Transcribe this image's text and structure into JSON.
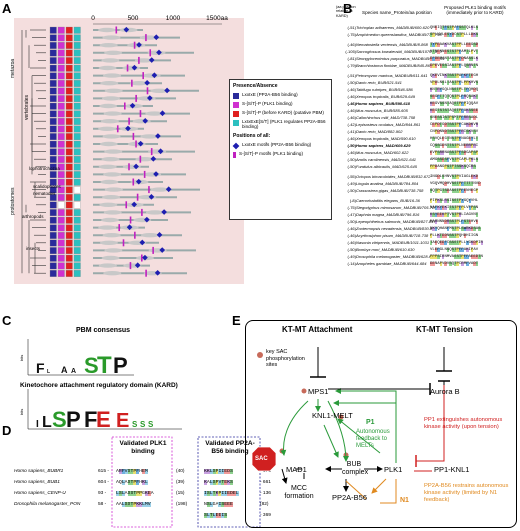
{
  "panels": {
    "a": "A",
    "b": "B",
    "c": "C",
    "d": "D",
    "e": "E"
  },
  "panelA": {
    "axis_ticks": [
      "0",
      "500",
      "1000",
      "1500aa"
    ],
    "clades": [
      "metazoa",
      "vertebrates",
      "lophotrochozoa",
      "protostomes",
      "scalidophores",
      "nematodes",
      "arthropods",
      "insects"
    ],
    "legend": {
      "title1": "Presence/Absence",
      "items1": [
        {
          "color": "#2a2a9a",
          "label": "LxxIxE (PP2A-B56 binding)"
        },
        {
          "color": "#d030d0",
          "label": "S-[S/T]-P (PLK1 binding)"
        },
        {
          "color": "#e02020",
          "label": "S-[S/T]-P (before KARD) (putative PBM)"
        },
        {
          "color": "#2cc0c0",
          "label": "LxIxExE[S/T] (PLK1 regulates PP2A-B56 binding)"
        }
      ],
      "title2": "Positions of all:",
      "items2": [
        {
          "color": "#1e1eb0",
          "label": "LxxIxE motifs (PP2A-B56 binding)"
        },
        {
          "color": "#c020c0",
          "label": "S-[S/T]-P motifs (PLK1 binding)"
        }
      ]
    }
  },
  "panelB": {
    "header_pos": "(aa position relative to KARD)",
    "header_species": "Species name_Protein/aa position",
    "header_motif": "Proposed PLK1 binding motifs (immediately prior to KARD)",
    "rows": [
      {
        "pos": "(-51)",
        "name": "Trichoplax adhaerens_MADBUB/600-620",
        "motif": "QNEIQTFSTPAFSSTQLKLS",
        "bold": false,
        "red": false
      },
      {
        "pos": "(-75)",
        "name": "Amphimedon queenslandica_MADBUB/736-756",
        "motif": "SPLNVLESYDCSTPLLLDKS",
        "bold": false,
        "red": false
      },
      {
        "pos": "(-46)",
        "name": "Nematostella vectensis_MADBUB/8-868",
        "motif": "TYPEAAKVASTPPLLEEGSD",
        "bold": false,
        "red": false
      },
      {
        "pos": "(-105)",
        "name": "Saccoglossus kowalevskii_MADBUB/1070-1090",
        "motif": "HTNENNESTSTPFAMTLPVT",
        "bold": false,
        "red": false
      },
      {
        "pos": "(-81)",
        "name": "Strongylocentrotus purpuratus_MADBUB/941-961",
        "motif": "DFDEMANTASTPFDNASSLK",
        "bold": false,
        "red": false
      },
      {
        "pos": "(-79)",
        "name": "Branchiostoma floridae_MADBUB/845-865",
        "motif": "DPEVESSIASTPFLQSRNTN",
        "bold": false,
        "red": false
      },
      {
        "pos": "(-51)",
        "name": "Petromyzon marinus_MADBUB/611-641",
        "motif": "QKEVINKTSSTPAFKFTEGH",
        "bold": false,
        "red": false
      },
      {
        "pos": "(-50)",
        "name": "Danio rerio_BUB/521-541",
        "motif": "VPDLNSLTASTPFLPPKHVS",
        "bold": false,
        "red": false
      },
      {
        "pos": "(-46)",
        "name": "Takifugu rubripes_BUB/546-586",
        "motif": "KNTRYGQLNSSTPLTFQHDQ",
        "bold": false,
        "red": false
      },
      {
        "pos": "(-46)",
        "name": "Xenopus tropicalis_BUB/629-649",
        "motif": "SEGFTTQTQSTPLFRQSAKT",
        "bold": false,
        "red": false
      },
      {
        "pos": "(-46)",
        "name": "Homo sapiens_BUB/598-618",
        "motif": "KEGVSSNTAQSTPFPIQQAV",
        "bold": true,
        "red": true
      },
      {
        "pos": "(-46)",
        "name": "Mus musculus_BUB/585-605",
        "motif": "KEGTSTSTAQSTPFAKSSEE",
        "bold": false,
        "red": false
      },
      {
        "pos": "(-46)",
        "name": "Callorhinchus milii_MAD/738-758",
        "motif": "SNESSISTPSMTPFRRSADL",
        "bold": false,
        "red": false
      },
      {
        "pos": "(-42)",
        "name": "Lepisosteus oculatus_MAD/844-861",
        "motif": "CEPDTGDTSSTPFCAKDKVR",
        "bold": false,
        "red": false
      },
      {
        "pos": "(-41)",
        "name": "Danio rerio_MAD/882-902",
        "motif": "CNPDNNDTSSTPFRISKVSV",
        "bold": false,
        "red": false
      },
      {
        "pos": "(-46)",
        "name": "Xenopus tropicalis_MAD/590-610",
        "motif": "HSVQLEGTNSTPFNAGEYLT",
        "bold": false,
        "red": false
      },
      {
        "pos": "(-50)",
        "name": "Homo sapiens_MAD/609-629",
        "motif": "CQSSGDNTTSTPLNERRPRI",
        "bold": true,
        "red": true
      },
      {
        "pos": "(-46)",
        "name": "Mus musculus_MAD/602-622",
        "motif": "EVPSRRNASSTPFSDGAPSP",
        "bold": false,
        "red": false
      },
      {
        "pos": "(-50)",
        "name": "Anolis carolinensis_MAD/621-641",
        "motif": "AMGSSDSFVSTPCAPLPKLS",
        "bold": false,
        "red": false
      },
      {
        "pos": "(-50)",
        "name": "Fundulus albicaulis_MAD/625-645",
        "motif": "PPDANGPSTPTSSKSQCRS",
        "bold": false,
        "red": false
      },
      {
        "pos": "(-55)",
        "name": "Octopus bimaculoides_MADBUB/832-672",
        "motif": "INGDLSHNVSTPVIAGLEKD",
        "bold": false,
        "red": false
      },
      {
        "pos": "(-49)",
        "name": "Lingula anatina_MADBUB/784-804",
        "motif": "VGQVMQDHVSSTPFTTTTNVD",
        "bold": false,
        "red": false
      },
      {
        "pos": "(-50)",
        "name": "Crassostrea gigas_MADBUB/738-758",
        "motif": "SQTPGTSDASSTPFENHEGP",
        "bold": false,
        "red": false
      },
      {
        "pos": "(-8)",
        "name": "Caenorhabditis elegans_BUB/16-36",
        "motif": "PIPKSLRSISSTPYGQYVHL",
        "bold": false,
        "red": false
      },
      {
        "pos": "(-75)",
        "name": "Stegodyphus mimosarum_MADBUB/705-725",
        "motif": "NAFKYEKITSTPFPLVFPSN",
        "bold": false,
        "red": false
      },
      {
        "pos": "(-47)",
        "name": "Daphnia magna_MADBUB/796-816",
        "motif": "KSYEEKPTVSTPRLIAGVNT",
        "bold": false,
        "red": false
      },
      {
        "pos": "(-50)",
        "name": "Lepeophtheirus salmonis_MADBUB/827-847",
        "motif": "MARNNNDRSSTPLFSTEHVE",
        "bold": false,
        "red": false
      },
      {
        "pos": "(-46)",
        "name": "Zootermopsis nevadensis_MADBUB/830-850",
        "motif": "NKYQHANFMSTPLSWRKDSAS",
        "bold": false,
        "red": false
      },
      {
        "pos": "(-46)",
        "name": "Acyrthosiphon pisum_MADBUB/718-738",
        "motif": "PLLKTDDNSSTPQHDHIIGN",
        "bold": false,
        "red": false
      },
      {
        "pos": "(-46)",
        "name": "Nasonia vitripennis_MADBUB/1011-1031",
        "motif": "TAEQEDFCSSSTPLLYGKDPIR",
        "bold": false,
        "red": false
      },
      {
        "pos": "(-50)",
        "name": "Bombyx mori_MADBUB/610-630",
        "motif": "VLEFGLNSQSTPFFAKIPAV",
        "bold": false,
        "red": false
      },
      {
        "pos": "(-49)",
        "name": "Drosophila melanogaster_MADBUB/628-648",
        "motif": "PPPSIRNMVASSTPFFAEEDTN",
        "bold": false,
        "red": false
      },
      {
        "pos": "(-14)",
        "name": "Anopheles gambiae_MADBUB/644-684",
        "motif": "DENAPVDVSQTPCRMFVADT",
        "bold": false,
        "red": false
      }
    ]
  },
  "panelC": {
    "title1": "PBM consensus",
    "title2": "Kinetochore attachment regulatory domain (KARD)",
    "ylabel": "bits"
  },
  "panelD": {
    "header_plk1": "Validated PLK1 binding",
    "header_pp2a": "Validated PP2A-B56 binding",
    "rows": [
      {
        "name": "Homo sapiens_BUBR1",
        "start": "615 -",
        "seq1": "ARFVSTPFHEM",
        "gap": "(40)",
        "seq2": "KKLSPIIEDS",
        "end": "- 676"
      },
      {
        "name": "Homo sapiens_BUB1",
        "start": "604 -",
        "seq1": "AQLASTPFHKL",
        "gap": "(39)",
        "seq2": "KALSPVTEKS",
        "end": "- 661"
      },
      {
        "name": "Homo sapiens_CENP-U",
        "start": "93 -",
        "seq1": "LSLASSTPPGKEA",
        "gap": "(15)",
        "seq2": "ISLTKPIIEDEL",
        "end": "- 136"
      },
      {
        "name": "Drosophila melanogaster_PON",
        "start": "58 -",
        "seq1": "AALSSTPKKLMV",
        "gap": "(198)",
        "seq2": "NSLGAISEEE",
        "end": "(82)"
      },
      {
        "name": "",
        "start": "",
        "seq1": "",
        "gap": "",
        "seq2": "SLTLEEIS",
        "end": "- 369"
      }
    ]
  },
  "panelE": {
    "kt_attach": "KT-MT Attachment",
    "kt_tension": "KT-MT Tension",
    "key_sac": "key SAC phosphorylation sites",
    "mps1": "MPS1",
    "aurora": "Aurora B",
    "knl1": "KNL1-MELT",
    "p1": "P1",
    "auto_feedback": "Autonomous feedback to MELTs",
    "pp1_text": "PP1 extinguishes autonomous kinase activity (upon tension)",
    "pp2a_text": "PP2A-B56 restrains autonomous kinase activity (limited by N1 feedback)",
    "sac": "SAC",
    "mad1": "MAD1",
    "bub": "BUB complex",
    "plk1": "PLK1",
    "pp1knl1": "PP1-KNL1",
    "mcc": "MCC formation",
    "pp2ab56": "PP2A-B56",
    "n1": "N1"
  }
}
